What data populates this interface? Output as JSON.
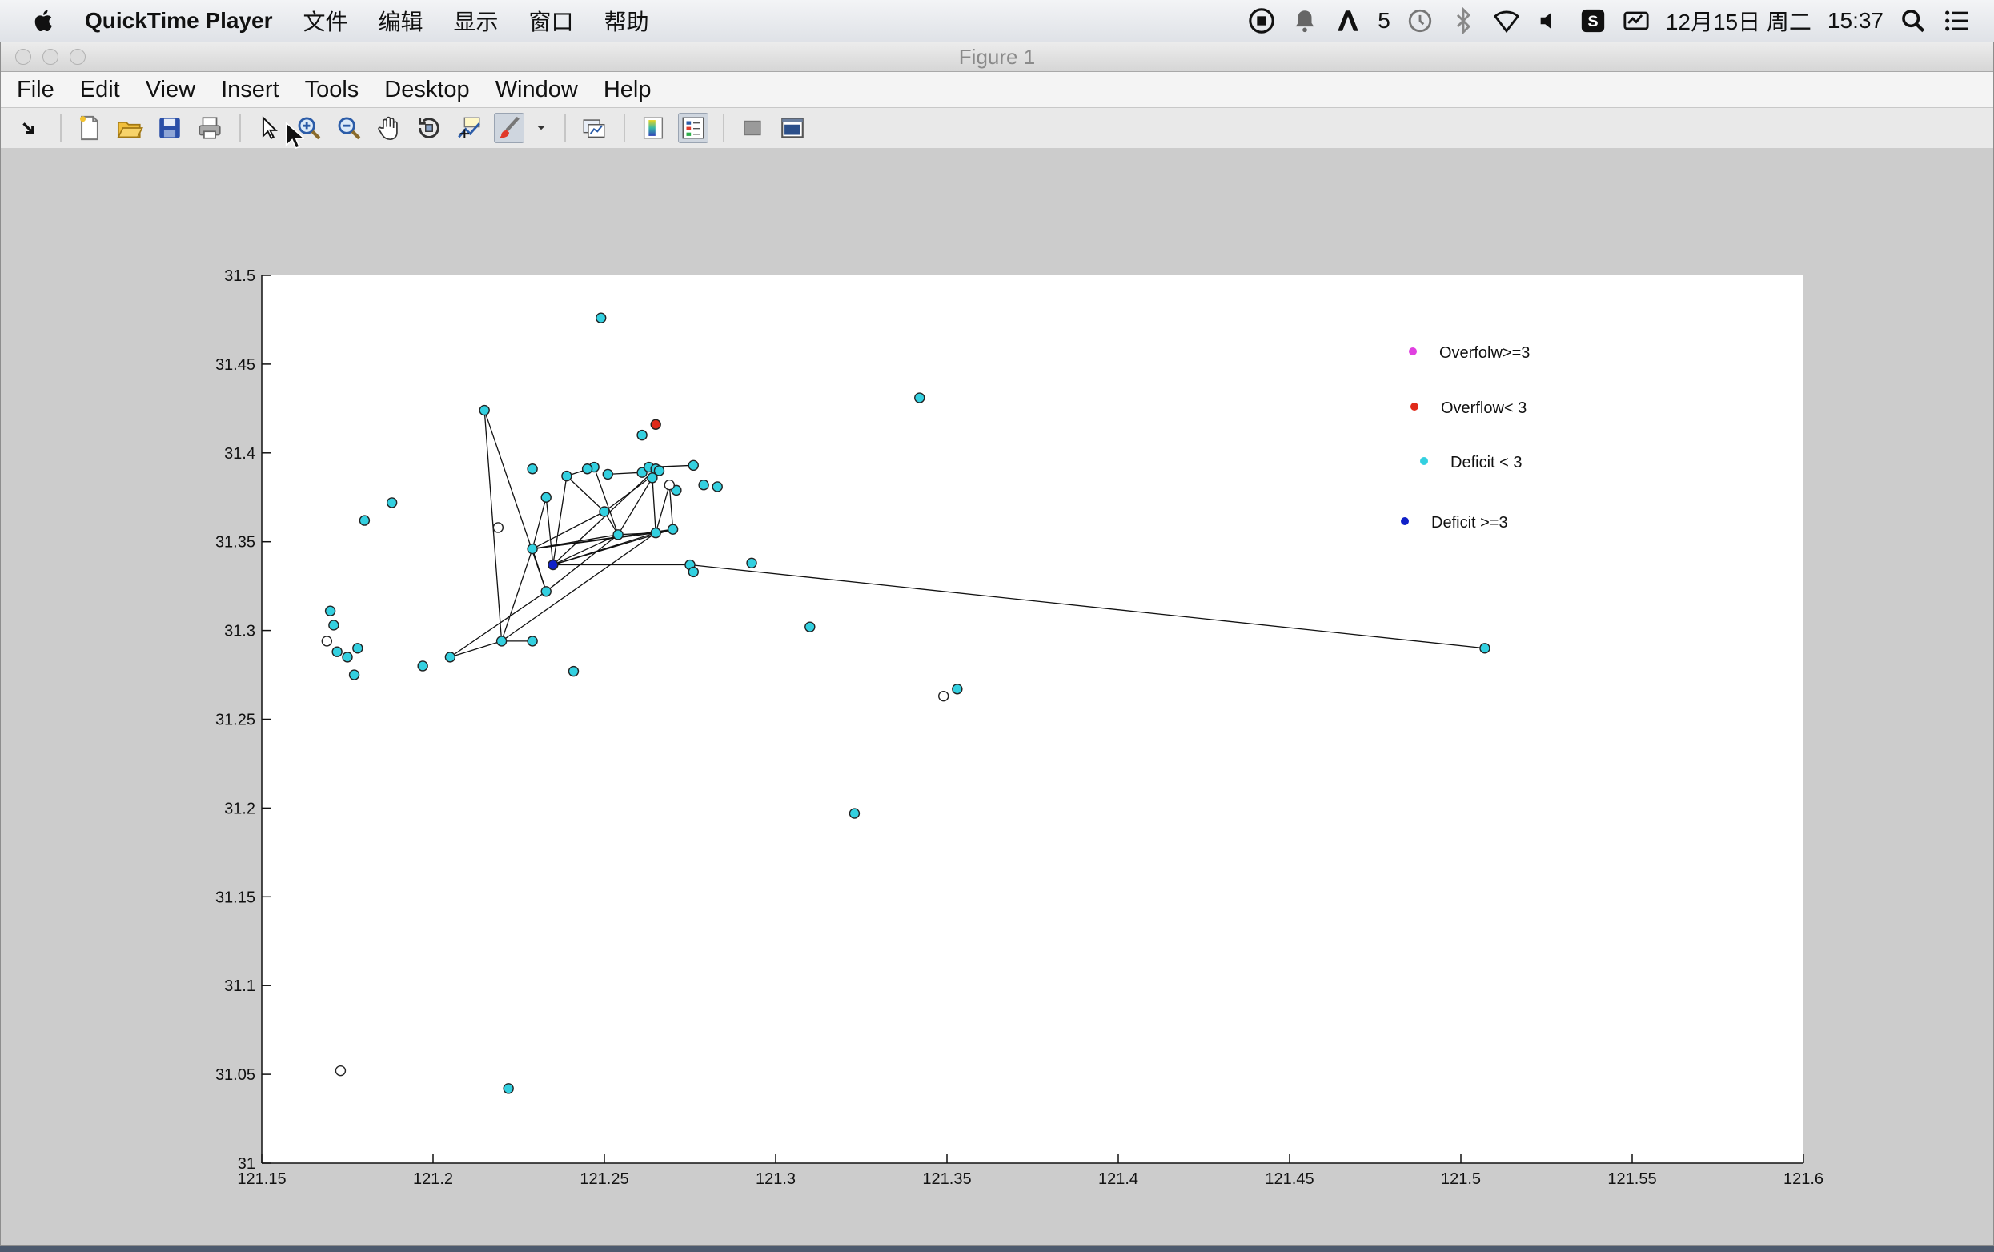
{
  "menubar": {
    "app_name": "QuickTime Player",
    "items": [
      "文件",
      "编辑",
      "显示",
      "窗口",
      "帮助"
    ],
    "status": {
      "adobe_count": "5",
      "date": "12月15日 周二",
      "time": "15:37"
    }
  },
  "window": {
    "title": "Figure 1",
    "menu": [
      "File",
      "Edit",
      "View",
      "Insert",
      "Tools",
      "Desktop",
      "Window",
      "Help"
    ]
  },
  "toolbar": {
    "icons": [
      "dock-icon",
      "new-figure-icon",
      "open-file-icon",
      "save-icon",
      "print-icon",
      "select-arrow-icon",
      "zoom-in-icon",
      "zoom-out-icon",
      "pan-hand-icon",
      "rotate-3d-icon",
      "data-cursor-icon",
      "brush-icon",
      "brush-dropdown-icon",
      "link-plot-icon",
      "colorbar-icon",
      "legend-icon",
      "hide-plot-tools-icon",
      "show-plot-tools-icon"
    ]
  },
  "colors": {
    "cyan_marker": "#33d0e0",
    "red_marker": "#e02a1a",
    "blue_marker": "#1020c8",
    "magenta_marker": "#e040e0",
    "figure_bg": "#cccccc"
  },
  "chart_data": {
    "type": "scatter",
    "title": "",
    "xlabel": "",
    "ylabel": "",
    "xlim": [
      121.15,
      121.6
    ],
    "ylim": [
      31.0,
      31.5
    ],
    "grid": false,
    "legend_position": "top-right",
    "xticks": [
      "121.15",
      "121.2",
      "121.25",
      "121.3",
      "121.35",
      "121.4",
      "121.45",
      "121.5",
      "121.55",
      "121.6"
    ],
    "yticks": [
      "31",
      "31.05",
      "31.1",
      "31.15",
      "31.2",
      "31.25",
      "31.3",
      "31.35",
      "31.4",
      "31.45",
      "31.5"
    ],
    "legend": [
      {
        "label": "Overfolw>=3",
        "color": "#e040e0"
      },
      {
        "label": "Overflow< 3",
        "color": "#e02a1a"
      },
      {
        "label": "Deficit < 3",
        "color": "#33d0e0"
      },
      {
        "label": "Deficit >=3",
        "color": "#1020c8"
      }
    ],
    "series": [
      {
        "marker": "cyan",
        "points": [
          [
            121.249,
            31.476
          ],
          [
            121.342,
            31.431
          ],
          [
            121.215,
            31.424
          ],
          [
            121.261,
            31.41
          ],
          [
            121.229,
            31.391
          ],
          [
            121.247,
            31.392
          ],
          [
            121.245,
            31.391
          ],
          [
            121.239,
            31.387
          ],
          [
            121.251,
            31.388
          ],
          [
            121.261,
            31.389
          ],
          [
            121.263,
            31.392
          ],
          [
            121.265,
            31.391
          ],
          [
            121.264,
            31.386
          ],
          [
            121.266,
            31.39
          ],
          [
            121.276,
            31.393
          ],
          [
            121.271,
            31.379
          ],
          [
            121.279,
            31.382
          ],
          [
            121.283,
            31.381
          ],
          [
            121.233,
            31.375
          ],
          [
            121.25,
            31.367
          ],
          [
            121.254,
            31.354
          ],
          [
            121.265,
            31.355
          ],
          [
            121.27,
            31.357
          ],
          [
            121.229,
            31.346
          ],
          [
            121.275,
            31.337
          ],
          [
            121.276,
            31.333
          ],
          [
            121.293,
            31.338
          ],
          [
            121.233,
            31.322
          ],
          [
            121.31,
            31.302
          ],
          [
            121.507,
            31.29
          ],
          [
            121.22,
            31.294
          ],
          [
            121.229,
            31.294
          ],
          [
            121.205,
            31.285
          ],
          [
            121.197,
            31.28
          ],
          [
            121.241,
            31.277
          ],
          [
            121.188,
            31.372
          ],
          [
            121.18,
            31.362
          ],
          [
            121.17,
            31.311
          ],
          [
            121.171,
            31.303
          ],
          [
            121.172,
            31.288
          ],
          [
            121.175,
            31.285
          ],
          [
            121.178,
            31.29
          ],
          [
            121.177,
            31.275
          ],
          [
            121.353,
            31.267
          ],
          [
            121.323,
            31.197
          ],
          [
            121.222,
            31.042
          ]
        ]
      },
      {
        "marker": "red",
        "points": [
          [
            121.265,
            31.416
          ]
        ]
      },
      {
        "marker": "blue",
        "points": [
          [
            121.235,
            31.337
          ]
        ]
      },
      {
        "marker": "empty",
        "points": [
          [
            121.219,
            31.358
          ],
          [
            121.269,
            31.382
          ],
          [
            121.169,
            31.294
          ],
          [
            121.349,
            31.263
          ],
          [
            121.173,
            31.052
          ]
        ]
      }
    ],
    "edges": [
      [
        [
          121.215,
          31.424
        ],
        [
          121.22,
          31.294
        ]
      ],
      [
        [
          121.215,
          31.424
        ],
        [
          121.233,
          31.322
        ]
      ],
      [
        [
          121.233,
          31.375
        ],
        [
          121.229,
          31.346
        ]
      ],
      [
        [
          121.233,
          31.375
        ],
        [
          121.235,
          31.337
        ]
      ],
      [
        [
          121.239,
          31.387
        ],
        [
          121.235,
          31.337
        ]
      ],
      [
        [
          121.239,
          31.387
        ],
        [
          121.247,
          31.392
        ]
      ],
      [
        [
          121.239,
          31.387
        ],
        [
          121.25,
          31.367
        ]
      ],
      [
        [
          121.247,
          31.392
        ],
        [
          121.254,
          31.354
        ]
      ],
      [
        [
          121.251,
          31.388
        ],
        [
          121.261,
          31.389
        ]
      ],
      [
        [
          121.261,
          31.389
        ],
        [
          121.263,
          31.392
        ]
      ],
      [
        [
          121.263,
          31.392
        ],
        [
          121.276,
          31.393
        ]
      ],
      [
        [
          121.264,
          31.386
        ],
        [
          121.254,
          31.354
        ]
      ],
      [
        [
          121.264,
          31.386
        ],
        [
          121.265,
          31.355
        ]
      ],
      [
        [
          121.266,
          31.39
        ],
        [
          121.25,
          31.367
        ]
      ],
      [
        [
          121.265,
          31.391
        ],
        [
          121.235,
          31.337
        ]
      ],
      [
        [
          121.269,
          31.382
        ],
        [
          121.265,
          31.355
        ]
      ],
      [
        [
          121.269,
          31.382
        ],
        [
          121.27,
          31.357
        ]
      ],
      [
        [
          121.25,
          31.367
        ],
        [
          121.229,
          31.346
        ]
      ],
      [
        [
          121.25,
          31.367
        ],
        [
          121.254,
          31.354
        ]
      ],
      [
        [
          121.229,
          31.346
        ],
        [
          121.254,
          31.354
        ]
      ],
      [
        [
          121.229,
          31.346
        ],
        [
          121.265,
          31.355
        ]
      ],
      [
        [
          121.229,
          31.346
        ],
        [
          121.27,
          31.357
        ]
      ],
      [
        [
          121.235,
          31.337
        ],
        [
          121.254,
          31.354
        ]
      ],
      [
        [
          121.235,
          31.337
        ],
        [
          121.265,
          31.355
        ]
      ],
      [
        [
          121.235,
          31.337
        ],
        [
          121.27,
          31.357
        ]
      ],
      [
        [
          121.235,
          31.337
        ],
        [
          121.275,
          31.337
        ]
      ],
      [
        [
          121.275,
          31.337
        ],
        [
          121.507,
          31.29
        ]
      ],
      [
        [
          121.233,
          31.322
        ],
        [
          121.254,
          31.354
        ]
      ],
      [
        [
          121.233,
          31.322
        ],
        [
          121.229,
          31.346
        ]
      ],
      [
        [
          121.22,
          31.294
        ],
        [
          121.229,
          31.346
        ]
      ],
      [
        [
          121.22,
          31.294
        ],
        [
          121.229,
          31.294
        ]
      ],
      [
        [
          121.22,
          31.294
        ],
        [
          121.265,
          31.355
        ]
      ],
      [
        [
          121.205,
          31.285
        ],
        [
          121.22,
          31.294
        ]
      ],
      [
        [
          121.205,
          31.285
        ],
        [
          121.233,
          31.322
        ]
      ],
      [
        [
          121.254,
          31.354
        ],
        [
          121.265,
          31.355
        ]
      ],
      [
        [
          121.265,
          31.355
        ],
        [
          121.27,
          31.357
        ]
      ]
    ]
  }
}
